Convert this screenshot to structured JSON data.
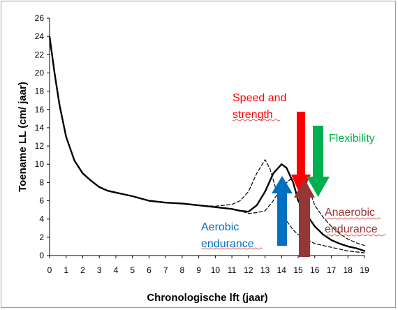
{
  "chart_data": {
    "type": "line",
    "xlabel": "Chronologische lft (jaar)",
    "ylabel": "Toename LL (cm/ jaar)",
    "xlim": [
      0,
      19
    ],
    "ylim": [
      0,
      26
    ],
    "x_ticks": [
      "0",
      "1",
      "2",
      "3",
      "4",
      "5",
      "6",
      "7",
      "8",
      "9",
      "10",
      "11",
      "12",
      "13",
      "14",
      "15",
      "16",
      "17",
      "18",
      "19"
    ],
    "y_ticks": [
      "0",
      "2",
      "4",
      "6",
      "8",
      "10",
      "12",
      "14",
      "16",
      "18",
      "20",
      "22",
      "24",
      "26"
    ],
    "grid": false,
    "series": [
      {
        "style": "solid",
        "points": [
          [
            0,
            24
          ],
          [
            0.3,
            20
          ],
          [
            0.6,
            16.5
          ],
          [
            1,
            13
          ],
          [
            1.5,
            10.4
          ],
          [
            2,
            9
          ],
          [
            2.5,
            8.2
          ],
          [
            3,
            7.5
          ],
          [
            3.5,
            7.1
          ],
          [
            4,
            6.9
          ],
          [
            5,
            6.5
          ],
          [
            6,
            6.0
          ],
          [
            7,
            5.8
          ],
          [
            8,
            5.7
          ],
          [
            9,
            5.5
          ],
          [
            10,
            5.3
          ],
          [
            11,
            5.1
          ],
          [
            11.5,
            4.9
          ],
          [
            12,
            4.8
          ],
          [
            12.5,
            5.5
          ],
          [
            13,
            7
          ],
          [
            13.5,
            9
          ],
          [
            14,
            10
          ],
          [
            14.3,
            9.6
          ],
          [
            14.7,
            8
          ],
          [
            15,
            6
          ],
          [
            15.5,
            4.5
          ],
          [
            16,
            3.2
          ],
          [
            16.5,
            2.3
          ],
          [
            17,
            1.7
          ],
          [
            17.5,
            1.3
          ],
          [
            18,
            1.0
          ],
          [
            18.5,
            0.8
          ],
          [
            19,
            0.5
          ]
        ]
      },
      {
        "style": "dashed",
        "points": [
          [
            9,
            5.5
          ],
          [
            10,
            5.4
          ],
          [
            11,
            5.6
          ],
          [
            11.5,
            6
          ],
          [
            12,
            7
          ],
          [
            12.5,
            9
          ],
          [
            13,
            10.5
          ],
          [
            13.3,
            9.5
          ],
          [
            13.7,
            7
          ],
          [
            14,
            5
          ],
          [
            14.3,
            3.8
          ],
          [
            14.7,
            2.8
          ],
          [
            15,
            2.3
          ],
          [
            15.5,
            1.8
          ],
          [
            16,
            1.3
          ],
          [
            17,
            0.9
          ],
          [
            18,
            0.5
          ],
          [
            19,
            0.3
          ]
        ]
      },
      {
        "style": "dashed",
        "points": [
          [
            11,
            5.1
          ],
          [
            11.5,
            4.9
          ],
          [
            12,
            4.6
          ],
          [
            12.5,
            4.7
          ],
          [
            13,
            4.9
          ],
          [
            13.5,
            6
          ],
          [
            14,
            7.5
          ],
          [
            14.5,
            8.3
          ],
          [
            15,
            8.5
          ],
          [
            15.3,
            8.3
          ],
          [
            15.7,
            7
          ],
          [
            16,
            5.5
          ],
          [
            16.5,
            4.2
          ],
          [
            17,
            3.2
          ],
          [
            17.5,
            2.4
          ],
          [
            18,
            1.8
          ],
          [
            18.5,
            1.4
          ],
          [
            19,
            1.1
          ]
        ]
      }
    ],
    "annotations": [
      {
        "text_lines": [
          "Speed and",
          "strength"
        ],
        "color": "#ff0000"
      },
      {
        "text_lines": [
          "Flexibility"
        ],
        "color": "#00b050"
      },
      {
        "text_lines": [
          "Aerobic",
          "endurance"
        ],
        "color": "#0070c0"
      },
      {
        "text_lines": [
          "Anaerobic",
          "endurance"
        ],
        "color": "#953735"
      }
    ]
  }
}
